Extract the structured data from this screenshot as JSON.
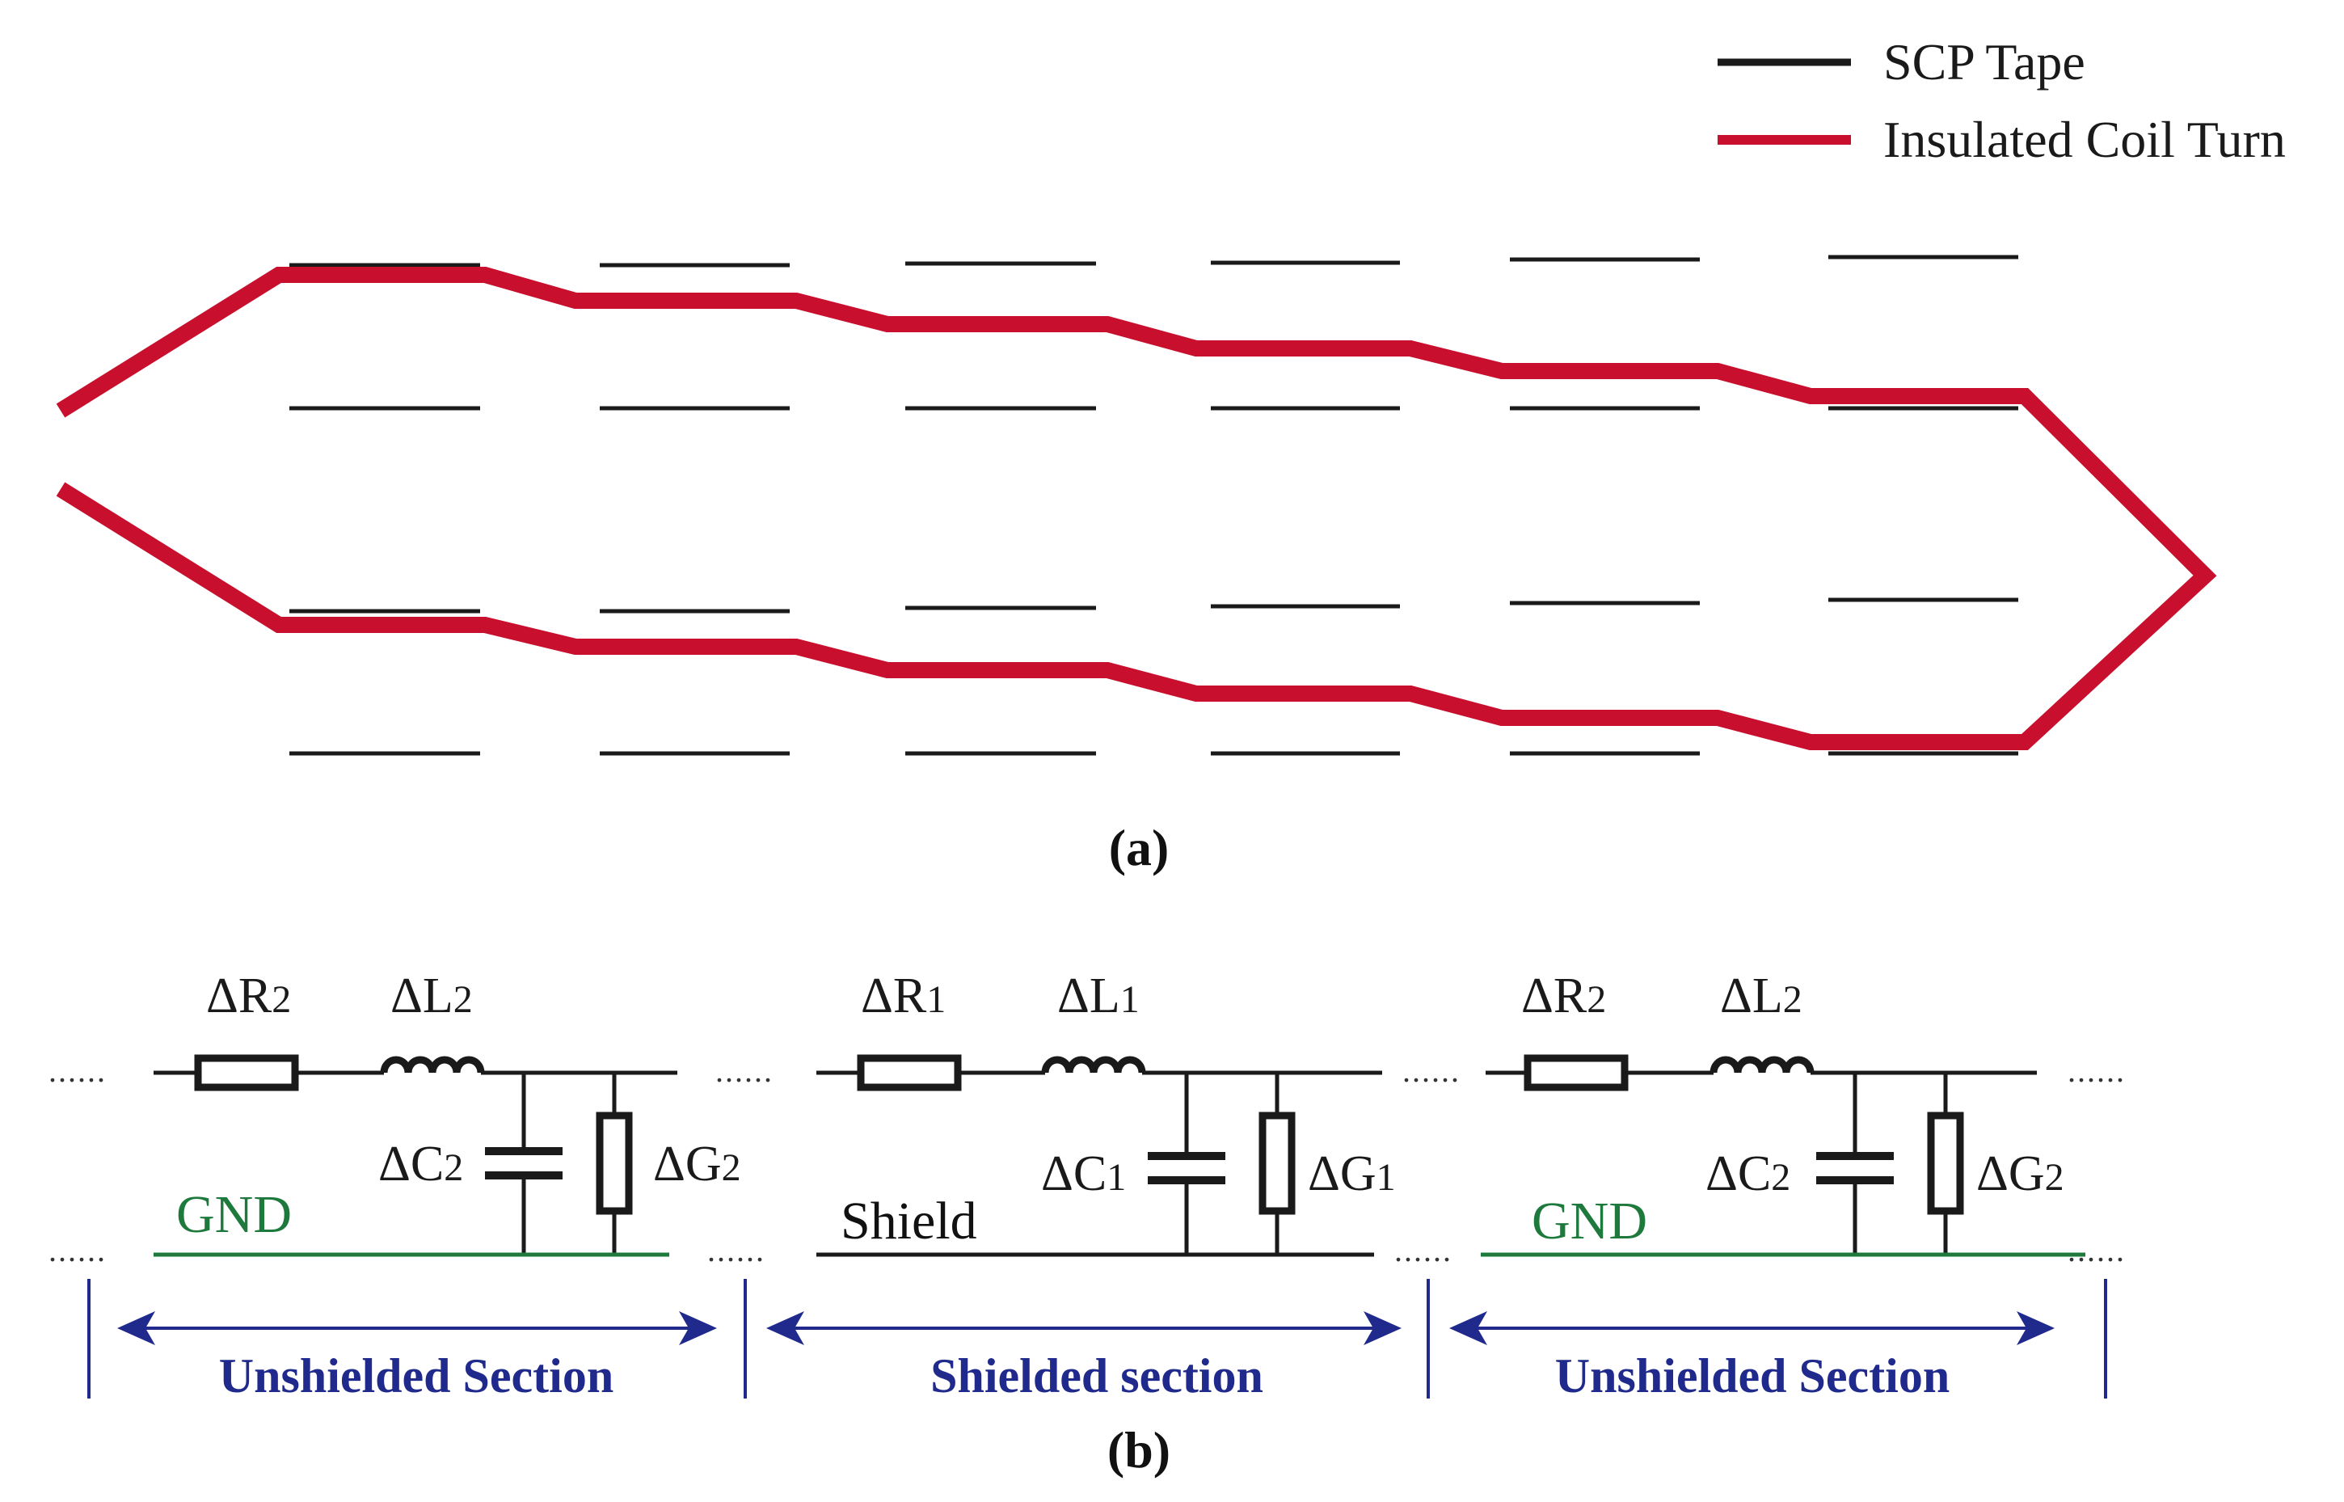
{
  "legend": {
    "items": [
      {
        "label": "SCP Tape",
        "color": "#1a1a1a"
      },
      {
        "label": "Insulated Coil Turn",
        "color": "#c8102e"
      }
    ]
  },
  "panel_a": {
    "caption": "(a)"
  },
  "panel_b": {
    "caption": "(b)",
    "dots": "......",
    "sections": [
      {
        "resistor": {
          "base": "ΔR",
          "sub": "2"
        },
        "inductor": {
          "base": "ΔL",
          "sub": "2"
        },
        "capacitor": {
          "base": "ΔC",
          "sub": "2"
        },
        "conductance": {
          "base": "ΔG",
          "sub": "2"
        },
        "ground_label": "GND",
        "span_label": "Unshielded Section"
      },
      {
        "resistor": {
          "base": "ΔR",
          "sub": "1"
        },
        "inductor": {
          "base": "ΔL",
          "sub": "1"
        },
        "capacitor": {
          "base": "ΔC",
          "sub": "1"
        },
        "conductance": {
          "base": "ΔG",
          "sub": "1"
        },
        "ground_label": "Shield",
        "span_label": "Shielded section"
      },
      {
        "resistor": {
          "base": "ΔR",
          "sub": "2"
        },
        "inductor": {
          "base": "ΔL",
          "sub": "2"
        },
        "capacitor": {
          "base": "ΔC",
          "sub": "2"
        },
        "conductance": {
          "base": "ΔG",
          "sub": "2"
        },
        "ground_label": "GND",
        "span_label": "Unshielded Section"
      }
    ]
  },
  "colors": {
    "tape": "#1a1a1a",
    "coil_turn": "#c8102e",
    "gnd": "#1e7a3c",
    "span": "#1f2a8c"
  }
}
